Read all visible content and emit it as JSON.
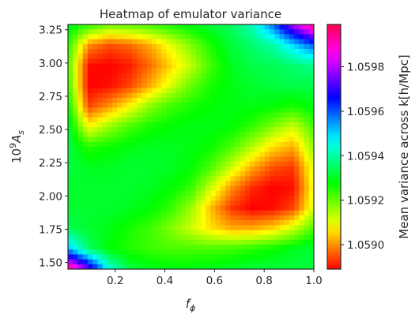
{
  "chart_data": {
    "type": "heatmap",
    "title": "Heatmap of emulator variance",
    "xlabel_base": "f",
    "xlabel_sub": "ϕ",
    "ylabel_base": "10",
    "ylabel_sup": "9",
    "ylabel_var": "A",
    "ylabel_sub": "s",
    "colorbar_label": "Mean variance across k[h/Mpc]",
    "colormap": "hsv",
    "xlim": [
      0.01,
      1.0
    ],
    "ylim": [
      1.45,
      3.29
    ],
    "x_ticks": [
      {
        "value": 0.2,
        "label": "0.2"
      },
      {
        "value": 0.4,
        "label": "0.4"
      },
      {
        "value": 0.6,
        "label": "0.6"
      },
      {
        "value": 0.8,
        "label": "0.8"
      },
      {
        "value": 1.0,
        "label": "1.0"
      }
    ],
    "y_ticks": [
      {
        "value": 1.5,
        "label": "1.50"
      },
      {
        "value": 1.75,
        "label": "1.75"
      },
      {
        "value": 2.0,
        "label": "2.00"
      },
      {
        "value": 2.25,
        "label": "2.25"
      },
      {
        "value": 2.5,
        "label": "2.50"
      },
      {
        "value": 2.75,
        "label": "2.75"
      },
      {
        "value": 3.0,
        "label": "3.00"
      },
      {
        "value": 3.25,
        "label": "3.25"
      }
    ],
    "colorbar_range": [
      1.05889,
      1.05999
    ],
    "colorbar_ticks": [
      {
        "value": 1.059,
        "label": "1.0590"
      },
      {
        "value": 1.0592,
        "label": "1.0592"
      },
      {
        "value": 1.0594,
        "label": "1.0594"
      },
      {
        "value": 1.0596,
        "label": "1.0596"
      },
      {
        "value": 1.0598,
        "label": "1.0598"
      }
    ],
    "grid": {
      "rows": 13,
      "cols": 13,
      "note_rows": "row 0 = top (y=3.29), last row = bottom (y=1.45); col 0 = left (x=0.01), last col = right (x=1.0)",
      "z": [
        [
          1.0593,
          1.05925,
          1.0592,
          1.05921,
          1.05923,
          1.05926,
          1.05929,
          1.05932,
          1.05935,
          1.05942,
          1.05958,
          1.0598,
          1.05998
        ],
        [
          1.05925,
          1.059,
          1.05895,
          1.05897,
          1.05902,
          1.0591,
          1.05918,
          1.05926,
          1.05932,
          1.05936,
          1.0594,
          1.0595,
          1.0596
        ],
        [
          1.05922,
          1.0589,
          1.05889,
          1.05891,
          1.05897,
          1.05905,
          1.05913,
          1.05923,
          1.0593,
          1.05933,
          1.05934,
          1.05936,
          1.05938
        ],
        [
          1.05924,
          1.05889,
          1.0589,
          1.05894,
          1.05902,
          1.05911,
          1.0592,
          1.05926,
          1.05929,
          1.05931,
          1.05932,
          1.05933,
          1.05933
        ],
        [
          1.05928,
          1.05894,
          1.059,
          1.05908,
          1.05917,
          1.05923,
          1.05926,
          1.05928,
          1.05929,
          1.05929,
          1.05928,
          1.05926,
          1.05929
        ],
        [
          1.05932,
          1.05908,
          1.05916,
          1.05922,
          1.05926,
          1.05928,
          1.05929,
          1.05929,
          1.05928,
          1.05924,
          1.05918,
          1.05912,
          1.05923
        ],
        [
          1.05933,
          1.05925,
          1.05927,
          1.05929,
          1.0593,
          1.0593,
          1.05929,
          1.05927,
          1.05922,
          1.05914,
          1.05906,
          1.05902,
          1.05917
        ],
        [
          1.05932,
          1.0593,
          1.0593,
          1.05931,
          1.05931,
          1.0593,
          1.05928,
          1.05922,
          1.05912,
          1.05902,
          1.05895,
          1.05893,
          1.05912
        ],
        [
          1.05931,
          1.05931,
          1.05931,
          1.05931,
          1.0593,
          1.05928,
          1.05924,
          1.05912,
          1.059,
          1.05892,
          1.05889,
          1.0589,
          1.0591
        ],
        [
          1.05931,
          1.05931,
          1.05931,
          1.0593,
          1.05928,
          1.05924,
          1.05916,
          1.05903,
          1.05893,
          1.05889,
          1.0589,
          1.05894,
          1.05912
        ],
        [
          1.05934,
          1.05931,
          1.05929,
          1.05926,
          1.05923,
          1.05918,
          1.05912,
          1.05906,
          1.05902,
          1.05902,
          1.05905,
          1.05912,
          1.05922
        ],
        [
          1.05952,
          1.05935,
          1.05928,
          1.05925,
          1.05923,
          1.05922,
          1.05922,
          1.05922,
          1.05923,
          1.05925,
          1.05927,
          1.0593,
          1.05932
        ],
        [
          1.05999,
          1.05975,
          1.05945,
          1.05933,
          1.0593,
          1.05929,
          1.05929,
          1.0593,
          1.05931,
          1.05932,
          1.05932,
          1.05932,
          1.05932
        ]
      ]
    }
  }
}
